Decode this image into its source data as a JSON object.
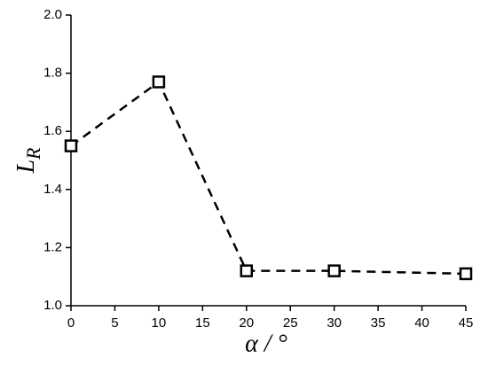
{
  "chart_data": {
    "type": "line",
    "xlabel": "α / °",
    "ylabel": {
      "text": "L",
      "subscript": "R"
    },
    "x": [
      0,
      10,
      20,
      30,
      45
    ],
    "series": [
      {
        "color": "#000000",
        "values": [
          1.55,
          1.77,
          1.12,
          1.12,
          1.11
        ]
      }
    ],
    "xlim": [
      0,
      45
    ],
    "xticks": [
      0,
      5,
      10,
      15,
      20,
      25,
      30,
      35,
      40,
      45
    ],
    "ylim": [
      1.0,
      2.0
    ],
    "yticks": [
      {
        "value": 1.0,
        "label": "1.0"
      },
      1.2,
      1.4,
      1.6,
      1.8,
      {
        "value": 2.0,
        "label": "2.0"
      }
    ]
  }
}
